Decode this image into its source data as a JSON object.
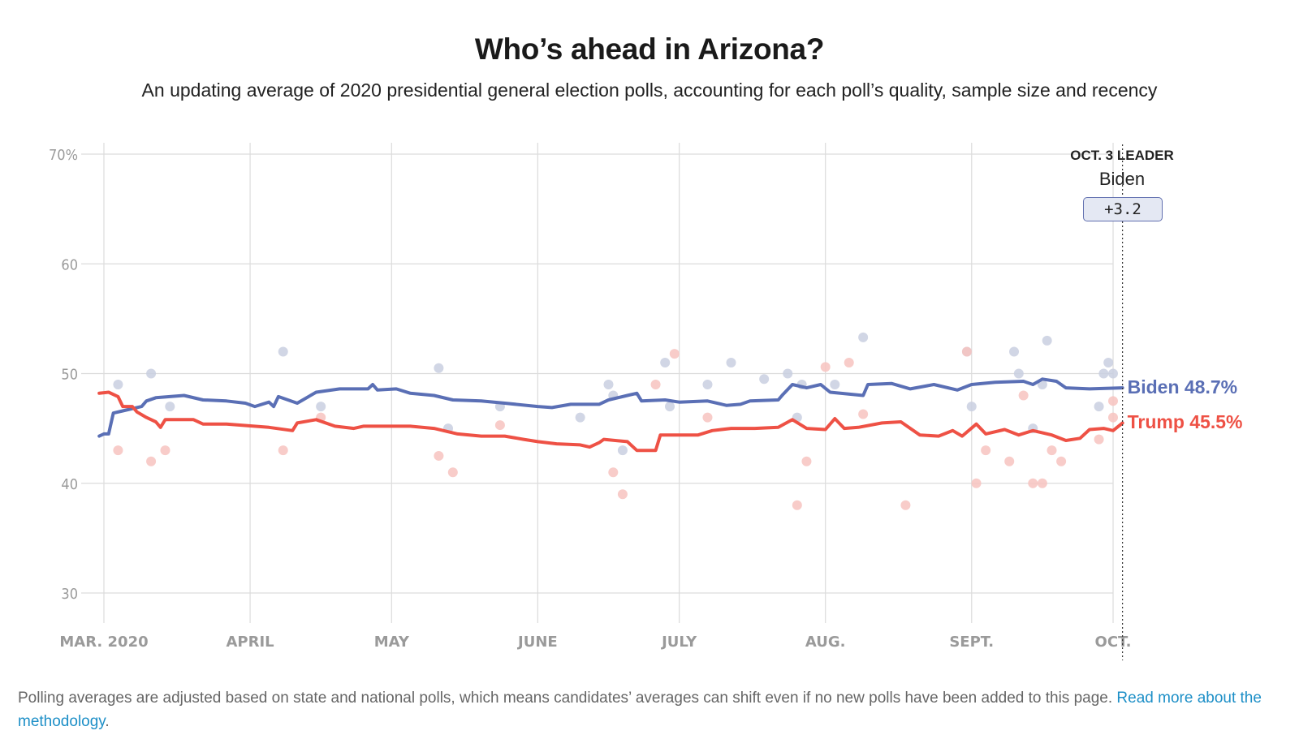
{
  "header": {
    "title": "Who’s ahead in Arizona?",
    "subtitle": "An updating average of 2020 presidential general election polls, accounting for each poll’s quality, sample size and recency"
  },
  "leader": {
    "heading": "OCT. 3 LEADER",
    "name": "Biden",
    "margin": "+3.2"
  },
  "labels": {
    "biden": "Biden 48.7%",
    "trump": "Trump 45.5%"
  },
  "footnote": {
    "text": "Polling averages are adjusted based on state and national polls, which means candidates’ averages can shift even if no new polls have been added to this page. ",
    "link": "Read more about the methodology",
    "end": "."
  },
  "colors": {
    "biden": "#5a6fb5",
    "trump": "#ee5145",
    "biden_dot": "#c9cfe0",
    "trump_dot": "#f7c3c0",
    "link": "#1d8fc7"
  },
  "chart_data": {
    "type": "line",
    "title": "Who’s ahead in Arizona?",
    "ylim": [
      27,
      71
    ],
    "yticks": [
      30,
      40,
      50,
      60,
      70
    ],
    "ytick_labels": [
      "30",
      "40",
      "50",
      "60",
      "70%"
    ],
    "xticks": [
      "2020-03-01",
      "2020-04-01",
      "2020-05-01",
      "2020-06-01",
      "2020-07-01",
      "2020-08-01",
      "2020-09-01",
      "2020-10-01"
    ],
    "xtick_labels": [
      "MAR. 2020",
      "APRIL",
      "MAY",
      "JUNE",
      "JULY",
      "AUG.",
      "SEPT.",
      "OCT."
    ],
    "xlim": [
      "2020-02-29",
      "2020-10-03"
    ],
    "marker_date": "2020-10-03",
    "grid": true,
    "series": [
      {
        "name": "Biden",
        "final": 48.7,
        "points": [
          [
            "2020-02-29",
            44.3
          ],
          [
            "2020-03-01",
            44.5
          ],
          [
            "2020-03-02",
            44.5
          ],
          [
            "2020-03-03",
            46.4
          ],
          [
            "2020-03-05",
            46.6
          ],
          [
            "2020-03-09",
            47.0
          ],
          [
            "2020-03-10",
            47.5
          ],
          [
            "2020-03-12",
            47.8
          ],
          [
            "2020-03-18",
            48.0
          ],
          [
            "2020-03-22",
            47.6
          ],
          [
            "2020-03-27",
            47.5
          ],
          [
            "2020-03-31",
            47.3
          ],
          [
            "2020-04-02",
            47.0
          ],
          [
            "2020-04-05",
            47.4
          ],
          [
            "2020-04-06",
            47.0
          ],
          [
            "2020-04-07",
            47.9
          ],
          [
            "2020-04-11",
            47.3
          ],
          [
            "2020-04-15",
            48.3
          ],
          [
            "2020-04-20",
            48.6
          ],
          [
            "2020-04-26",
            48.6
          ],
          [
            "2020-04-27",
            49.0
          ],
          [
            "2020-04-28",
            48.5
          ],
          [
            "2020-05-02",
            48.6
          ],
          [
            "2020-05-05",
            48.2
          ],
          [
            "2020-05-10",
            48.0
          ],
          [
            "2020-05-14",
            47.6
          ],
          [
            "2020-05-20",
            47.5
          ],
          [
            "2020-05-25",
            47.3
          ],
          [
            "2020-06-01",
            47.0
          ],
          [
            "2020-06-04",
            46.9
          ],
          [
            "2020-06-08",
            47.2
          ],
          [
            "2020-06-14",
            47.2
          ],
          [
            "2020-06-16",
            47.6
          ],
          [
            "2020-06-20",
            48.0
          ],
          [
            "2020-06-22",
            48.2
          ],
          [
            "2020-06-23",
            47.5
          ],
          [
            "2020-06-28",
            47.6
          ],
          [
            "2020-07-01",
            47.4
          ],
          [
            "2020-07-07",
            47.5
          ],
          [
            "2020-07-11",
            47.1
          ],
          [
            "2020-07-14",
            47.2
          ],
          [
            "2020-07-16",
            47.5
          ],
          [
            "2020-07-22",
            47.6
          ],
          [
            "2020-07-23",
            48.1
          ],
          [
            "2020-07-25",
            49.0
          ],
          [
            "2020-07-28",
            48.7
          ],
          [
            "2020-07-31",
            49.0
          ],
          [
            "2020-08-02",
            48.3
          ],
          [
            "2020-08-09",
            48.0
          ],
          [
            "2020-08-10",
            49.0
          ],
          [
            "2020-08-15",
            49.1
          ],
          [
            "2020-08-19",
            48.6
          ],
          [
            "2020-08-24",
            49.0
          ],
          [
            "2020-08-29",
            48.5
          ],
          [
            "2020-09-01",
            49.0
          ],
          [
            "2020-09-06",
            49.2
          ],
          [
            "2020-09-12",
            49.3
          ],
          [
            "2020-09-14",
            49.0
          ],
          [
            "2020-09-16",
            49.5
          ],
          [
            "2020-09-19",
            49.3
          ],
          [
            "2020-09-21",
            48.7
          ],
          [
            "2020-09-26",
            48.6
          ],
          [
            "2020-10-03",
            48.7
          ]
        ]
      },
      {
        "name": "Trump",
        "final": 45.5,
        "points": [
          [
            "2020-02-29",
            48.2
          ],
          [
            "2020-03-02",
            48.3
          ],
          [
            "2020-03-04",
            47.9
          ],
          [
            "2020-03-05",
            47.0
          ],
          [
            "2020-03-07",
            47.0
          ],
          [
            "2020-03-08",
            46.5
          ],
          [
            "2020-03-10",
            46.0
          ],
          [
            "2020-03-12",
            45.6
          ],
          [
            "2020-03-13",
            45.1
          ],
          [
            "2020-03-14",
            45.8
          ],
          [
            "2020-03-20",
            45.8
          ],
          [
            "2020-03-22",
            45.4
          ],
          [
            "2020-03-27",
            45.4
          ],
          [
            "2020-04-05",
            45.1
          ],
          [
            "2020-04-10",
            44.8
          ],
          [
            "2020-04-11",
            45.5
          ],
          [
            "2020-04-15",
            45.8
          ],
          [
            "2020-04-19",
            45.2
          ],
          [
            "2020-04-23",
            45.0
          ],
          [
            "2020-04-25",
            45.2
          ],
          [
            "2020-05-05",
            45.2
          ],
          [
            "2020-05-10",
            45.0
          ],
          [
            "2020-05-15",
            44.5
          ],
          [
            "2020-05-20",
            44.3
          ],
          [
            "2020-05-25",
            44.3
          ],
          [
            "2020-05-29",
            44.0
          ],
          [
            "2020-06-01",
            43.8
          ],
          [
            "2020-06-05",
            43.6
          ],
          [
            "2020-06-10",
            43.5
          ],
          [
            "2020-06-12",
            43.3
          ],
          [
            "2020-06-14",
            43.7
          ],
          [
            "2020-06-15",
            44.0
          ],
          [
            "2020-06-20",
            43.8
          ],
          [
            "2020-06-22",
            43.0
          ],
          [
            "2020-06-26",
            43.0
          ],
          [
            "2020-06-27",
            44.4
          ],
          [
            "2020-07-05",
            44.4
          ],
          [
            "2020-07-08",
            44.8
          ],
          [
            "2020-07-12",
            45.0
          ],
          [
            "2020-07-17",
            45.0
          ],
          [
            "2020-07-22",
            45.1
          ],
          [
            "2020-07-25",
            45.8
          ],
          [
            "2020-07-28",
            45.0
          ],
          [
            "2020-08-01",
            44.9
          ],
          [
            "2020-08-03",
            45.9
          ],
          [
            "2020-08-05",
            45.0
          ],
          [
            "2020-08-08",
            45.1
          ],
          [
            "2020-08-13",
            45.5
          ],
          [
            "2020-08-17",
            45.6
          ],
          [
            "2020-08-21",
            44.4
          ],
          [
            "2020-08-25",
            44.3
          ],
          [
            "2020-08-28",
            44.8
          ],
          [
            "2020-08-30",
            44.3
          ],
          [
            "2020-09-02",
            45.4
          ],
          [
            "2020-09-04",
            44.5
          ],
          [
            "2020-09-08",
            44.9
          ],
          [
            "2020-09-11",
            44.4
          ],
          [
            "2020-09-14",
            44.8
          ],
          [
            "2020-09-18",
            44.4
          ],
          [
            "2020-09-21",
            43.9
          ],
          [
            "2020-09-24",
            44.1
          ],
          [
            "2020-09-26",
            44.9
          ],
          [
            "2020-09-29",
            45.0
          ],
          [
            "2020-10-01",
            44.8
          ],
          [
            "2020-10-03",
            45.5
          ]
        ]
      }
    ],
    "polls": {
      "Biden": [
        [
          "2020-03-04",
          49.0
        ],
        [
          "2020-03-11",
          50.0
        ],
        [
          "2020-03-15",
          47.0
        ],
        [
          "2020-04-08",
          52.0
        ],
        [
          "2020-04-16",
          47.0
        ],
        [
          "2020-05-11",
          50.5
        ],
        [
          "2020-05-13",
          45.0
        ],
        [
          "2020-05-24",
          47.0
        ],
        [
          "2020-06-10",
          46.0
        ],
        [
          "2020-06-16",
          49.0
        ],
        [
          "2020-06-17",
          48.0
        ],
        [
          "2020-06-19",
          43.0
        ],
        [
          "2020-06-28",
          51.0
        ],
        [
          "2020-06-29",
          47.0
        ],
        [
          "2020-07-07",
          49.0
        ],
        [
          "2020-07-12",
          51.0
        ],
        [
          "2020-07-19",
          49.5
        ],
        [
          "2020-07-24",
          50.0
        ],
        [
          "2020-07-26",
          46.0
        ],
        [
          "2020-07-27",
          49.0
        ],
        [
          "2020-08-03",
          49.0
        ],
        [
          "2020-08-09",
          53.3
        ],
        [
          "2020-08-31",
          52.0
        ],
        [
          "2020-09-01",
          47.0
        ],
        [
          "2020-09-10",
          52.0
        ],
        [
          "2020-09-11",
          50.0
        ],
        [
          "2020-09-14",
          45.0
        ],
        [
          "2020-09-17",
          53.0
        ],
        [
          "2020-09-16",
          49.0
        ],
        [
          "2020-09-29",
          50.0
        ],
        [
          "2020-09-30",
          51.0
        ],
        [
          "2020-10-01",
          50.0
        ],
        [
          "2020-09-28",
          47.0
        ]
      ],
      "Trump": [
        [
          "2020-03-04",
          43.0
        ],
        [
          "2020-03-11",
          42.0
        ],
        [
          "2020-03-14",
          43.0
        ],
        [
          "2020-04-08",
          43.0
        ],
        [
          "2020-04-16",
          46.0
        ],
        [
          "2020-05-11",
          42.5
        ],
        [
          "2020-05-14",
          41.0
        ],
        [
          "2020-05-24",
          45.3
        ],
        [
          "2020-06-17",
          41.0
        ],
        [
          "2020-06-19",
          39.0
        ],
        [
          "2020-06-26",
          49.0
        ],
        [
          "2020-06-30",
          51.8
        ],
        [
          "2020-07-07",
          46.0
        ],
        [
          "2020-07-26",
          38.0
        ],
        [
          "2020-07-28",
          42.0
        ],
        [
          "2020-08-01",
          50.6
        ],
        [
          "2020-08-06",
          51.0
        ],
        [
          "2020-08-09",
          46.3
        ],
        [
          "2020-08-18",
          38.0
        ],
        [
          "2020-08-31",
          52.0
        ],
        [
          "2020-09-02",
          40.0
        ],
        [
          "2020-09-04",
          43.0
        ],
        [
          "2020-09-09",
          42.0
        ],
        [
          "2020-09-12",
          48.0
        ],
        [
          "2020-09-14",
          40.0
        ],
        [
          "2020-09-16",
          40.0
        ],
        [
          "2020-09-18",
          43.0
        ],
        [
          "2020-09-20",
          42.0
        ],
        [
          "2020-09-28",
          44.0
        ],
        [
          "2020-10-01",
          46.0
        ],
        [
          "2020-10-01",
          47.5
        ]
      ]
    }
  }
}
